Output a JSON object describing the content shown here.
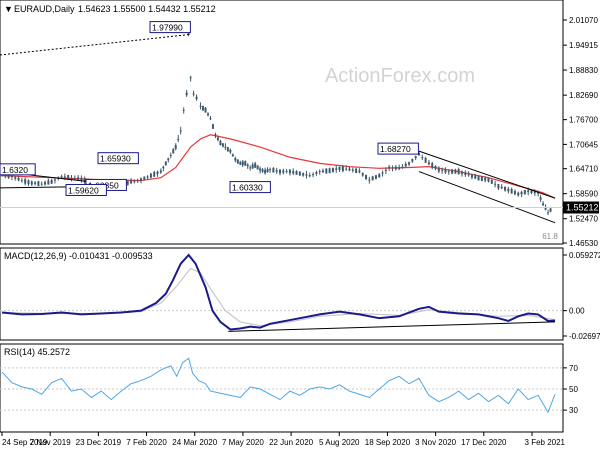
{
  "header": {
    "symbol_label": "EURAUD,Daily",
    "ohlc": "1.54623 1.55500 1.54432 1.55212"
  },
  "watermark": "ActionForex.com",
  "fib_label": "61.8",
  "colors": {
    "candles": "#3d5a6c",
    "ma": "#e8353a",
    "macd_line": "#1a1a8c",
    "macd_signal": "#c9c9c9",
    "rsi_line": "#4da6e8",
    "trendline": "#000000",
    "price_tag_bg": "#000000",
    "label_border": "#1a1a8c",
    "watermark": "#d0d0d0"
  },
  "chart_data": [
    {
      "type": "line",
      "name": "price-panel",
      "y_ticks": [
        "2.01070",
        "1.94915",
        "1.88830",
        "1.82690",
        "1.76700",
        "1.70645",
        "1.64710",
        "1.58590",
        "1.52470",
        "1.46530"
      ],
      "ylim": [
        1.4653,
        2.0107
      ],
      "last_price": "1.55212",
      "last_value": 1.55212,
      "ma_last_value": 1.572,
      "ma_last_label": "",
      "points": [
        [
          0,
          1.632
        ],
        [
          10,
          1.628
        ],
        [
          20,
          1.618
        ],
        [
          30,
          1.612
        ],
        [
          40,
          1.61
        ],
        [
          50,
          1.615
        ],
        [
          60,
          1.628
        ],
        [
          70,
          1.625
        ],
        [
          80,
          1.622
        ],
        [
          90,
          1.612
        ],
        [
          100,
          1.61
        ],
        [
          110,
          1.612
        ],
        [
          120,
          1.608
        ],
        [
          130,
          1.615
        ],
        [
          140,
          1.62
        ],
        [
          150,
          1.63
        ],
        [
          160,
          1.64
        ],
        [
          165,
          1.66
        ],
        [
          170,
          1.68
        ],
        [
          175,
          1.7
        ],
        [
          180,
          1.74
        ],
        [
          183,
          1.79
        ],
        [
          186,
          1.83
        ],
        [
          188,
          1.9799
        ],
        [
          190,
          1.87
        ],
        [
          193,
          1.83
        ],
        [
          196,
          1.82
        ],
        [
          200,
          1.8
        ],
        [
          205,
          1.79
        ],
        [
          210,
          1.77
        ],
        [
          215,
          1.73
        ],
        [
          220,
          1.71
        ],
        [
          225,
          1.7
        ],
        [
          230,
          1.69
        ],
        [
          235,
          1.67
        ],
        [
          240,
          1.66
        ],
        [
          245,
          1.66
        ],
        [
          250,
          1.65
        ],
        [
          255,
          1.655
        ],
        [
          260,
          1.645
        ],
        [
          265,
          1.64
        ],
        [
          270,
          1.645
        ],
        [
          280,
          1.64
        ],
        [
          290,
          1.64
        ],
        [
          300,
          1.635
        ],
        [
          310,
          1.63
        ],
        [
          320,
          1.64
        ],
        [
          330,
          1.642
        ],
        [
          340,
          1.648
        ],
        [
          350,
          1.645
        ],
        [
          360,
          1.64
        ],
        [
          370,
          1.62
        ],
        [
          380,
          1.63
        ],
        [
          390,
          1.65
        ],
        [
          400,
          1.648
        ],
        [
          410,
          1.66
        ],
        [
          420,
          1.6827
        ],
        [
          430,
          1.66
        ],
        [
          440,
          1.645
        ],
        [
          450,
          1.64
        ],
        [
          460,
          1.64
        ],
        [
          470,
          1.632
        ],
        [
          480,
          1.624
        ],
        [
          490,
          1.62
        ],
        [
          500,
          1.604
        ],
        [
          510,
          1.595
        ],
        [
          520,
          1.585
        ],
        [
          530,
          1.592
        ],
        [
          540,
          1.588
        ],
        [
          545,
          1.56
        ],
        [
          550,
          1.54
        ],
        [
          555,
          1.552
        ]
      ],
      "ma": [
        [
          0,
          1.63
        ],
        [
          50,
          1.625
        ],
        [
          100,
          1.62
        ],
        [
          140,
          1.618
        ],
        [
          160,
          1.625
        ],
        [
          175,
          1.65
        ],
        [
          190,
          1.7
        ],
        [
          200,
          1.72
        ],
        [
          210,
          1.73
        ],
        [
          230,
          1.72
        ],
        [
          260,
          1.7
        ],
        [
          290,
          1.675
        ],
        [
          320,
          1.66
        ],
        [
          350,
          1.652
        ],
        [
          380,
          1.648
        ],
        [
          410,
          1.65
        ],
        [
          430,
          1.652
        ],
        [
          460,
          1.64
        ],
        [
          490,
          1.625
        ],
        [
          520,
          1.605
        ],
        [
          545,
          1.588
        ],
        [
          557,
          1.575
        ]
      ],
      "labels": [
        {
          "text": "1.97990",
          "value": 1.9799
        },
        {
          "text": "1.65930",
          "value": 1.6593
        },
        {
          "text": "1.60850",
          "value": 1.6085
        },
        {
          "text": "1.59620",
          "value": 1.5962
        },
        {
          "text": "1.60330",
          "value": 1.6033
        },
        {
          "text": "1.68270",
          "value": 1.6827
        },
        {
          "text": "1.6320",
          "value": 1.632
        }
      ]
    },
    {
      "type": "line",
      "name": "macd-panel",
      "title": "MACD(12,26,9) -0.010431 -0.009533",
      "y_ticks": [
        "0.059272",
        "0.00",
        "-0.026978"
      ],
      "ylim": [
        -0.026978,
        0.059272
      ],
      "macd": [
        [
          0,
          -0.002
        ],
        [
          20,
          -0.004
        ],
        [
          40,
          -0.0035
        ],
        [
          60,
          -0.002
        ],
        [
          80,
          -0.004
        ],
        [
          100,
          -0.003
        ],
        [
          120,
          -0.002
        ],
        [
          140,
          0.0
        ],
        [
          155,
          0.008
        ],
        [
          165,
          0.018
        ],
        [
          172,
          0.032
        ],
        [
          180,
          0.05
        ],
        [
          188,
          0.059272
        ],
        [
          195,
          0.05
        ],
        [
          205,
          0.025
        ],
        [
          212,
          0.0
        ],
        [
          220,
          -0.012
        ],
        [
          230,
          -0.02
        ],
        [
          240,
          -0.019
        ],
        [
          250,
          -0.017
        ],
        [
          260,
          -0.018
        ],
        [
          270,
          -0.014
        ],
        [
          280,
          -0.012
        ],
        [
          300,
          -0.008
        ],
        [
          320,
          -0.004
        ],
        [
          340,
          -0.001
        ],
        [
          360,
          -0.004
        ],
        [
          380,
          -0.008
        ],
        [
          400,
          -0.006
        ],
        [
          420,
          0.002
        ],
        [
          430,
          0.004
        ],
        [
          440,
          -0.001
        ],
        [
          460,
          -0.003
        ],
        [
          480,
          -0.004
        ],
        [
          500,
          -0.008
        ],
        [
          510,
          -0.011
        ],
        [
          520,
          -0.006
        ],
        [
          530,
          -0.003
        ],
        [
          540,
          -0.004
        ],
        [
          550,
          -0.011
        ],
        [
          557,
          -0.010431
        ]
      ],
      "signal": [
        [
          0,
          -0.002
        ],
        [
          50,
          -0.003
        ],
        [
          100,
          -0.003
        ],
        [
          140,
          -0.001
        ],
        [
          160,
          0.008
        ],
        [
          175,
          0.025
        ],
        [
          190,
          0.045
        ],
        [
          200,
          0.04
        ],
        [
          212,
          0.02
        ],
        [
          225,
          0.0
        ],
        [
          240,
          -0.012
        ],
        [
          260,
          -0.016
        ],
        [
          290,
          -0.012
        ],
        [
          320,
          -0.006
        ],
        [
          360,
          -0.003
        ],
        [
          400,
          -0.005
        ],
        [
          430,
          0.001
        ],
        [
          460,
          -0.002
        ],
        [
          500,
          -0.006
        ],
        [
          530,
          -0.005
        ],
        [
          557,
          -0.009533
        ]
      ],
      "trendline": [
        [
          228,
          -0.022
        ],
        [
          557,
          -0.012
        ]
      ]
    },
    {
      "type": "line",
      "name": "rsi-panel",
      "title": "RSI(14) 45.2572",
      "y_ticks": [
        "70",
        "50",
        "30"
      ],
      "ylim": [
        15,
        85
      ],
      "values": [
        [
          0,
          66
        ],
        [
          10,
          56
        ],
        [
          20,
          52
        ],
        [
          30,
          50
        ],
        [
          40,
          45
        ],
        [
          50,
          56
        ],
        [
          60,
          60
        ],
        [
          70,
          48
        ],
        [
          80,
          50
        ],
        [
          90,
          42
        ],
        [
          100,
          48
        ],
        [
          110,
          40
        ],
        [
          120,
          48
        ],
        [
          130,
          55
        ],
        [
          140,
          58
        ],
        [
          150,
          62
        ],
        [
          160,
          68
        ],
        [
          170,
          72
        ],
        [
          176,
          62
        ],
        [
          182,
          75
        ],
        [
          188,
          79
        ],
        [
          192,
          65
        ],
        [
          198,
          58
        ],
        [
          205,
          55
        ],
        [
          210,
          48
        ],
        [
          220,
          46
        ],
        [
          230,
          44
        ],
        [
          240,
          42
        ],
        [
          250,
          52
        ],
        [
          260,
          50
        ],
        [
          270,
          45
        ],
        [
          280,
          40
        ],
        [
          290,
          48
        ],
        [
          300,
          44
        ],
        [
          310,
          50
        ],
        [
          320,
          52
        ],
        [
          330,
          50
        ],
        [
          340,
          54
        ],
        [
          350,
          48
        ],
        [
          360,
          45
        ],
        [
          370,
          42
        ],
        [
          380,
          50
        ],
        [
          390,
          58
        ],
        [
          400,
          62
        ],
        [
          410,
          55
        ],
        [
          420,
          60
        ],
        [
          430,
          44
        ],
        [
          440,
          38
        ],
        [
          450,
          42
        ],
        [
          460,
          48
        ],
        [
          470,
          40
        ],
        [
          480,
          46
        ],
        [
          490,
          38
        ],
        [
          500,
          44
        ],
        [
          510,
          36
        ],
        [
          520,
          50
        ],
        [
          530,
          40
        ],
        [
          540,
          44
        ],
        [
          550,
          28
        ],
        [
          557,
          45
        ]
      ]
    }
  ],
  "x_axis": {
    "labels": [
      "24 Sep 2019",
      "7 Nov 2019",
      "23 Dec 2019",
      "7 Feb 2020",
      "24 Mar 2020",
      "7 May 2020",
      "22 Jun 2020",
      "5 Aug 2020",
      "18 Sep 2020",
      "3 Nov 2020",
      "17 Dec 2020",
      "3 Feb 2021"
    ]
  }
}
